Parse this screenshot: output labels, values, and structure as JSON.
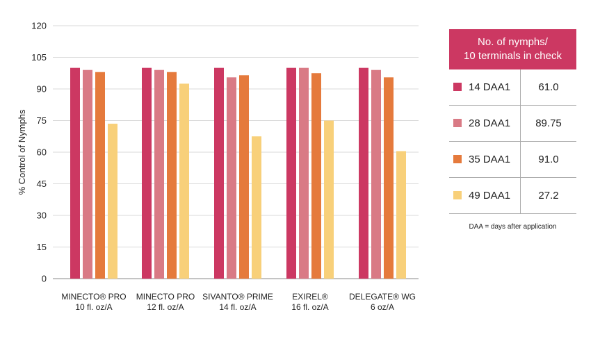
{
  "chart_data": {
    "type": "bar",
    "ylabel": "% Control of Nymphs",
    "ylim": [
      0,
      120
    ],
    "yticks": [
      0,
      15,
      30,
      45,
      60,
      75,
      90,
      105,
      120
    ],
    "grid": true,
    "categories": [
      {
        "line1": "MINECTO® PRO",
        "line2": "10 fl. oz/A"
      },
      {
        "line1": "MINECTO PRO",
        "line2": "12 fl. oz/A"
      },
      {
        "line1": "SIVANTO® PRIME",
        "line2": "14 fl. oz/A"
      },
      {
        "line1": "EXIREL®",
        "line2": "16 fl. oz/A"
      },
      {
        "line1": "DELEGATE® WG",
        "line2": "6 oz/A"
      }
    ],
    "series": [
      {
        "name": "14 DAA1",
        "color": "#cc3862",
        "values": [
          100,
          100,
          100,
          100,
          100
        ]
      },
      {
        "name": "28 DAA1",
        "color": "#d97a85",
        "values": [
          99,
          99,
          95.5,
          100,
          99
        ]
      },
      {
        "name": "35 DAA1",
        "color": "#e57a3c",
        "values": [
          98,
          98,
          96.5,
          97.5,
          95.5
        ]
      },
      {
        "name": "49 DAA1",
        "color": "#f8d07a",
        "values": [
          73.5,
          92.5,
          67.5,
          75,
          60.5
        ]
      }
    ]
  },
  "legend_table": {
    "header_line1": "No. of nymphs/",
    "header_line2": "10 terminals in check",
    "rows": [
      {
        "label": "14 DAA1",
        "value": "61.0"
      },
      {
        "label": "28 DAA1",
        "value": "89.75"
      },
      {
        "label": "35 DAA1",
        "value": "91.0"
      },
      {
        "label": "49 DAA1",
        "value": "27.2"
      }
    ],
    "footnote": "DAA = days after application"
  }
}
